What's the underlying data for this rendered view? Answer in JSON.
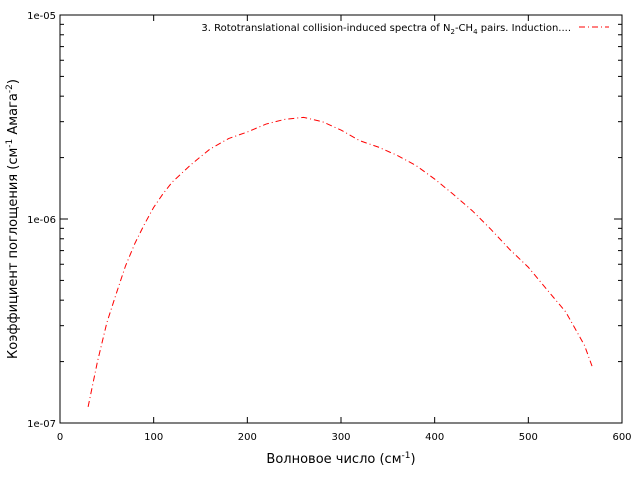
{
  "chart_data": {
    "type": "line",
    "title": "",
    "xlabel": "Волновое число (см",
    "xlabel_sup": "-1",
    "xlabel_tail": ")",
    "ylabel": "Коэффициент поглощения (см",
    "ylabel_sup1": "-1",
    "ylabel_mid": " Амага",
    "ylabel_sup2": "-2",
    "ylabel_tail": ")",
    "xlim": [
      0,
      600
    ],
    "ylim": [
      1e-07,
      1e-05
    ],
    "yscale": "log",
    "grid": false,
    "legend_position": "top-right",
    "xticks": [
      0,
      100,
      200,
      300,
      400,
      500,
      600
    ],
    "xtick_labels": [
      "0",
      "100",
      "200",
      "300",
      "400",
      "500",
      "600"
    ],
    "yticks": [
      1e-07,
      1e-06,
      1e-05
    ],
    "ytick_labels": [
      "1e-07",
      "1e-06",
      "1e-05"
    ],
    "series": [
      {
        "name": "3. Rototranslational collision-induced spectra of N₂-CH₄ pairs. Induction....",
        "name_parts": [
          "3. Rototranslational collision-induced spectra of N",
          "2",
          "-CH",
          "4",
          " pairs. Induction...."
        ],
        "color": "#ff0000",
        "style": "dash-dot",
        "x": [
          30,
          40,
          50,
          60,
          70,
          80,
          90,
          100,
          110,
          120,
          140,
          160,
          180,
          200,
          220,
          240,
          260,
          280,
          300,
          320,
          340,
          360,
          380,
          400,
          420,
          440,
          460,
          480,
          500,
          520,
          540,
          560,
          568
        ],
        "y": [
          1.2e-07,
          2e-07,
          3.1e-07,
          4.3e-07,
          5.9e-07,
          7.6e-07,
          9.4e-07,
          1.14e-06,
          1.33e-06,
          1.52e-06,
          1.85e-06,
          2.2e-06,
          2.48e-06,
          2.67e-06,
          2.92e-06,
          3.08e-06,
          3.15e-06,
          3e-06,
          2.73e-06,
          2.42e-06,
          2.25e-06,
          2.05e-06,
          1.83e-06,
          1.57e-06,
          1.32e-06,
          1.1e-06,
          8.9e-07,
          7.1e-07,
          5.8e-07,
          4.5e-07,
          3.5e-07,
          2.4e-07,
          1.9e-07
        ]
      }
    ]
  }
}
